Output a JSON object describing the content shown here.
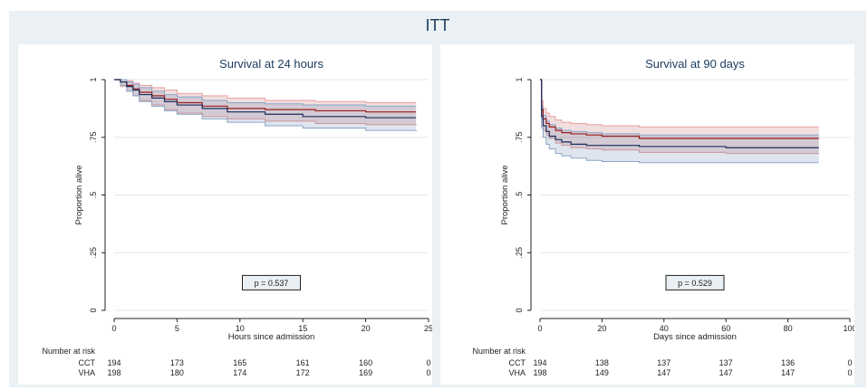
{
  "figure_title": "ITT",
  "risk_header": "Number at risk",
  "colors": {
    "CCT_line": "#9b1c1c",
    "CCT_band": "rgba(180,70,70,0.18)",
    "CCT_band_edge": "#e8a0a0",
    "VHA_line": "#1a2d5c",
    "VHA_band": "rgba(80,110,160,0.18)",
    "VHA_band_edge": "#8aa6c8",
    "grid": "#e3e8ec",
    "axis": "#222222"
  },
  "chart_data": [
    {
      "type": "line",
      "title": "Survival at 24 hours",
      "xlabel": "Hours since admission",
      "ylabel": "Proportion alive",
      "xlim": [
        0,
        25
      ],
      "ylim": [
        0,
        1
      ],
      "x_ticks": [
        0,
        5,
        10,
        15,
        20,
        25
      ],
      "x_tick_labels": [
        "0",
        "5",
        "10",
        "15",
        "20",
        "25"
      ],
      "y_ticks": [
        0,
        0.25,
        0.5,
        0.75,
        1
      ],
      "y_tick_labels": [
        "0",
        ".25",
        ".5",
        ".75",
        "1"
      ],
      "grid": true,
      "pvalue": "p = 0.537",
      "series": [
        {
          "label": "CCT",
          "color_key": "CCT",
          "x": [
            0,
            0.5,
            1,
            1.5,
            2,
            3,
            4,
            5,
            7,
            9,
            12,
            16,
            20,
            24
          ],
          "values": [
            1,
            0.99,
            0.975,
            0.96,
            0.945,
            0.93,
            0.915,
            0.9,
            0.885,
            0.875,
            0.87,
            0.865,
            0.86,
            0.86
          ],
          "ci_lower": [
            1,
            0.97,
            0.95,
            0.93,
            0.91,
            0.89,
            0.87,
            0.855,
            0.84,
            0.83,
            0.82,
            0.81,
            0.805,
            0.8
          ],
          "ci_upper": [
            1,
            1,
            0.995,
            0.985,
            0.975,
            0.965,
            0.955,
            0.94,
            0.93,
            0.92,
            0.91,
            0.905,
            0.9,
            0.9
          ]
        },
        {
          "label": "VHA",
          "color_key": "VHA",
          "x": [
            0,
            0.5,
            1,
            1.5,
            2,
            3,
            4,
            5,
            7,
            9,
            12,
            15,
            20,
            24
          ],
          "values": [
            1,
            0.99,
            0.97,
            0.955,
            0.935,
            0.92,
            0.905,
            0.89,
            0.875,
            0.86,
            0.85,
            0.84,
            0.835,
            0.835
          ],
          "ci_lower": [
            1,
            0.975,
            0.95,
            0.93,
            0.905,
            0.885,
            0.865,
            0.85,
            0.83,
            0.815,
            0.8,
            0.79,
            0.78,
            0.775
          ],
          "ci_upper": [
            1,
            1,
            0.99,
            0.98,
            0.965,
            0.95,
            0.935,
            0.925,
            0.91,
            0.9,
            0.895,
            0.89,
            0.885,
            0.885
          ]
        }
      ],
      "risk_table": {
        "times": [
          0,
          5,
          10,
          15,
          20,
          25
        ],
        "rows": [
          {
            "label": "CCT",
            "counts": [
              "194",
              "173",
              "165",
              "161",
              "160",
              "0"
            ]
          },
          {
            "label": "VHA",
            "counts": [
              "198",
              "180",
              "174",
              "172",
              "169",
              "0"
            ]
          }
        ]
      }
    },
    {
      "type": "line",
      "title": "Survival at 90 days",
      "xlabel": "Days since admission",
      "ylabel": "Proportion alive",
      "xlim": [
        0,
        100
      ],
      "ylim": [
        0,
        1
      ],
      "x_ticks": [
        0,
        20,
        40,
        60,
        80,
        100
      ],
      "x_tick_labels": [
        "0",
        "20",
        "40",
        "60",
        "80",
        "100"
      ],
      "y_ticks": [
        0,
        0.25,
        0.5,
        0.75,
        1
      ],
      "y_tick_labels": [
        "0",
        ".25",
        ".5",
        ".75",
        "1"
      ],
      "grid": true,
      "pvalue": "p = 0.529",
      "series": [
        {
          "label": "CCT",
          "color_key": "CCT",
          "x": [
            0,
            0.5,
            1,
            2,
            3,
            5,
            7,
            10,
            15,
            20,
            32,
            60,
            90
          ],
          "values": [
            1,
            0.87,
            0.83,
            0.81,
            0.795,
            0.78,
            0.77,
            0.765,
            0.76,
            0.755,
            0.745,
            0.745,
            0.745
          ],
          "ci_lower": [
            1,
            0.82,
            0.78,
            0.76,
            0.745,
            0.725,
            0.715,
            0.705,
            0.7,
            0.695,
            0.685,
            0.68,
            0.68
          ],
          "ci_upper": [
            1,
            0.91,
            0.875,
            0.855,
            0.84,
            0.825,
            0.815,
            0.81,
            0.805,
            0.8,
            0.795,
            0.795,
            0.795
          ]
        },
        {
          "label": "VHA",
          "color_key": "VHA",
          "x": [
            0,
            0.5,
            1,
            2,
            3,
            5,
            7,
            10,
            15,
            20,
            32,
            60,
            90
          ],
          "values": [
            1,
            0.84,
            0.8,
            0.775,
            0.755,
            0.74,
            0.73,
            0.72,
            0.715,
            0.715,
            0.71,
            0.705,
            0.705
          ],
          "ci_lower": [
            1,
            0.79,
            0.75,
            0.72,
            0.7,
            0.68,
            0.67,
            0.66,
            0.65,
            0.645,
            0.64,
            0.64,
            0.64
          ],
          "ci_upper": [
            1,
            0.885,
            0.845,
            0.82,
            0.805,
            0.79,
            0.78,
            0.775,
            0.77,
            0.765,
            0.76,
            0.76,
            0.76
          ]
        }
      ],
      "risk_table": {
        "times": [
          0,
          20,
          40,
          60,
          80,
          100
        ],
        "rows": [
          {
            "label": "CCT",
            "counts": [
              "194",
              "138",
              "137",
              "137",
              "136",
              "0"
            ]
          },
          {
            "label": "VHA",
            "counts": [
              "198",
              "149",
              "147",
              "147",
              "147",
              "0"
            ]
          }
        ]
      }
    }
  ]
}
